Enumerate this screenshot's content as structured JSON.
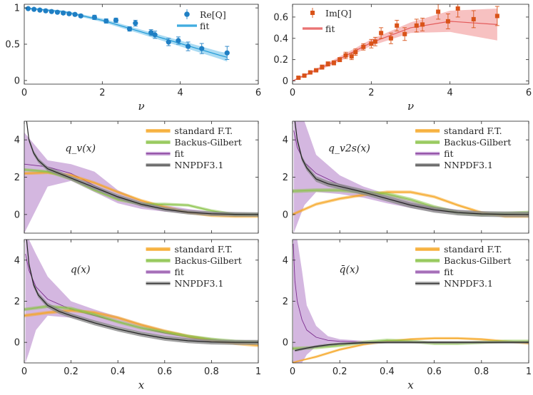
{
  "chart_data": [
    {
      "type": "scatter",
      "id": "re_q",
      "xlabel": "ν",
      "xlim": [
        0,
        6
      ],
      "ylim": [
        -0.05,
        1.05
      ],
      "xticks": [
        0,
        2,
        4,
        6
      ],
      "yticks": [
        0,
        0.5,
        1
      ],
      "ytick_labels": [
        "0",
        "0.5",
        "1"
      ],
      "legend": [
        "Re[Q]",
        "fit"
      ],
      "legend_position": "top-right",
      "points": {
        "x": [
          0.1,
          0.25,
          0.4,
          0.55,
          0.7,
          0.85,
          1.0,
          1.15,
          1.3,
          1.45,
          1.8,
          2.1,
          2.35,
          2.7,
          2.85,
          3.25,
          3.35,
          3.7,
          3.95,
          4.2,
          4.55,
          5.2
        ],
        "y": [
          0.99,
          0.98,
          0.97,
          0.96,
          0.95,
          0.94,
          0.93,
          0.92,
          0.91,
          0.89,
          0.87,
          0.82,
          0.83,
          0.71,
          0.79,
          0.66,
          0.63,
          0.53,
          0.55,
          0.47,
          0.44,
          0.38
        ],
        "err": [
          0.01,
          0.01,
          0.01,
          0.01,
          0.01,
          0.01,
          0.02,
          0.02,
          0.02,
          0.02,
          0.03,
          0.03,
          0.03,
          0.03,
          0.04,
          0.04,
          0.05,
          0.05,
          0.05,
          0.06,
          0.07,
          0.09
        ]
      },
      "fit": {
        "x": [
          0,
          1,
          2,
          3,
          4,
          5,
          5.2
        ],
        "y": [
          1.0,
          0.95,
          0.83,
          0.67,
          0.51,
          0.35,
          0.32
        ],
        "band": [
          0.01,
          0.015,
          0.025,
          0.03,
          0.04,
          0.05,
          0.06
        ]
      }
    },
    {
      "type": "scatter",
      "id": "im_q",
      "xlabel": "ν",
      "xlim": [
        0,
        6
      ],
      "ylim": [
        -0.03,
        0.72
      ],
      "xticks": [
        0,
        2,
        4,
        6
      ],
      "yticks": [
        0,
        0.2,
        0.4,
        0.6
      ],
      "ytick_labels": [
        "0",
        "0.2",
        "0.4",
        "0.6"
      ],
      "legend": [
        "Im[Q]",
        "fit"
      ],
      "legend_position": "top-left",
      "points": {
        "x": [
          0.15,
          0.3,
          0.45,
          0.6,
          0.75,
          0.9,
          1.05,
          1.2,
          1.35,
          1.5,
          1.6,
          1.8,
          2.0,
          2.1,
          2.25,
          2.5,
          2.65,
          2.85,
          3.15,
          3.3,
          3.7,
          3.95,
          4.2,
          4.6,
          5.2
        ],
        "y": [
          0.03,
          0.05,
          0.08,
          0.1,
          0.13,
          0.16,
          0.17,
          0.2,
          0.24,
          0.23,
          0.27,
          0.32,
          0.35,
          0.37,
          0.45,
          0.4,
          0.52,
          0.44,
          0.52,
          0.53,
          0.65,
          0.56,
          0.68,
          0.58,
          0.61
        ]
      },
      "point_err": [
        0.01,
        0.01,
        0.01,
        0.01,
        0.02,
        0.02,
        0.02,
        0.02,
        0.03,
        0.03,
        0.03,
        0.03,
        0.04,
        0.04,
        0.05,
        0.05,
        0.05,
        0.06,
        0.06,
        0.06,
        0.07,
        0.07,
        0.08,
        0.08,
        0.09
      ],
      "fit": {
        "x": [
          0,
          1,
          2,
          3,
          4,
          5.2
        ],
        "y": [
          0.0,
          0.17,
          0.36,
          0.5,
          0.56,
          0.53
        ],
        "band": [
          0.005,
          0.02,
          0.03,
          0.05,
          0.1,
          0.15
        ]
      }
    },
    {
      "type": "line",
      "id": "qv",
      "annotation": "q_v(x)",
      "xlim": [
        0,
        1
      ],
      "ylim": [
        -1,
        5
      ],
      "yticks": [
        0,
        2,
        4
      ],
      "legend": [
        "standard F.T.",
        "Backus-Gilbert",
        "fit",
        "NNPDF3.1"
      ],
      "legend_position": "top-right",
      "series": [
        {
          "name": "standard F.T.",
          "x": [
            0,
            0.1,
            0.2,
            0.3,
            0.4,
            0.5,
            0.6,
            0.7,
            0.8,
            0.9,
            1.0
          ],
          "y": [
            2.2,
            2.25,
            2.1,
            1.7,
            1.2,
            0.75,
            0.4,
            0.1,
            -0.05,
            -0.1,
            -0.1
          ],
          "band": 0.08
        },
        {
          "name": "Backus-Gilbert",
          "x": [
            0,
            0.1,
            0.2,
            0.3,
            0.4,
            0.5,
            0.6,
            0.7,
            0.8,
            0.9,
            1.0
          ],
          "y": [
            2.4,
            2.3,
            1.9,
            1.3,
            0.8,
            0.55,
            0.55,
            0.5,
            0.2,
            0.0,
            0.0
          ],
          "band": 0.08
        },
        {
          "name": "fit",
          "x": [
            0,
            0.1,
            0.2,
            0.3,
            0.4,
            0.5,
            0.6,
            0.7,
            0.8,
            0.9,
            1.0
          ],
          "y": [
            2.7,
            2.55,
            2.2,
            1.55,
            0.9,
            0.5,
            0.3,
            0.15,
            0.05,
            0.0,
            0.0
          ],
          "band_lo": [
            -1.0,
            1.5,
            1.8,
            1.2,
            0.6,
            0.3,
            0.15,
            0.05,
            -0.05,
            -0.05,
            -0.05
          ],
          "band_hi": [
            4.4,
            2.9,
            2.7,
            2.3,
            1.3,
            0.75,
            0.5,
            0.3,
            0.15,
            0.1,
            0.05
          ]
        },
        {
          "name": "NNPDF3.1",
          "x": [
            0.01,
            0.02,
            0.04,
            0.06,
            0.1,
            0.15,
            0.2,
            0.3,
            0.4,
            0.5,
            0.6,
            0.7,
            0.8,
            0.9,
            1.0
          ],
          "y": [
            5.0,
            4.0,
            3.3,
            2.9,
            2.45,
            2.2,
            1.95,
            1.45,
            0.95,
            0.55,
            0.28,
            0.12,
            0.04,
            0.01,
            0.0
          ],
          "band": 0.12
        }
      ]
    },
    {
      "type": "line",
      "id": "qv2s",
      "annotation": "q_v2s(x)",
      "xlim": [
        0,
        1
      ],
      "ylim": [
        -1,
        5
      ],
      "yticks": [
        0,
        2,
        4
      ],
      "legend": [
        "standard F.T.",
        "Backus-Gilbert",
        "fit",
        "NNPDF3.1"
      ],
      "legend_position": "top-right",
      "series": [
        {
          "name": "standard F.T.",
          "x": [
            0,
            0.1,
            0.2,
            0.3,
            0.4,
            0.5,
            0.6,
            0.7,
            0.8,
            0.9,
            1.0
          ],
          "y": [
            0.0,
            0.55,
            0.85,
            1.05,
            1.2,
            1.2,
            0.95,
            0.5,
            0.1,
            -0.1,
            -0.1
          ],
          "band": 0.08
        },
        {
          "name": "Backus-Gilbert",
          "x": [
            0,
            0.1,
            0.2,
            0.3,
            0.4,
            0.5,
            0.6,
            0.7,
            0.8,
            0.9,
            1.0
          ],
          "y": [
            1.25,
            1.3,
            1.3,
            1.2,
            1.1,
            0.8,
            0.4,
            0.1,
            0.0,
            0.05,
            0.1
          ],
          "band": 0.1
        },
        {
          "name": "fit",
          "x": [
            0.005,
            0.02,
            0.05,
            0.1,
            0.2,
            0.3,
            0.4,
            0.5,
            0.6,
            0.7,
            0.8,
            0.9,
            1.0
          ],
          "y": [
            4.5,
            3.6,
            2.8,
            2.2,
            1.6,
            1.2,
            0.85,
            0.55,
            0.3,
            0.15,
            0.05,
            0.0,
            0.0
          ],
          "band_lo": [
            -1.0,
            -0.5,
            0.5,
            1.2,
            1.1,
            0.9,
            0.6,
            0.35,
            0.15,
            0.05,
            -0.05,
            -0.05,
            -0.05
          ],
          "band_hi": [
            5.0,
            5.0,
            5.0,
            3.2,
            2.1,
            1.5,
            1.1,
            0.75,
            0.45,
            0.25,
            0.15,
            0.05,
            0.05
          ]
        },
        {
          "name": "NNPDF3.1",
          "x": [
            0.01,
            0.02,
            0.04,
            0.06,
            0.1,
            0.15,
            0.2,
            0.3,
            0.4,
            0.5,
            0.6,
            0.7,
            0.8,
            0.9,
            1.0
          ],
          "y": [
            5.0,
            4.0,
            3.0,
            2.5,
            1.9,
            1.65,
            1.5,
            1.2,
            0.85,
            0.5,
            0.25,
            0.1,
            0.03,
            0.01,
            0.0
          ],
          "band": 0.15
        }
      ]
    },
    {
      "type": "line",
      "id": "q",
      "annotation": "q(x)",
      "xlabel": "x",
      "xlim": [
        0,
        1
      ],
      "ylim": [
        -1,
        5
      ],
      "xticks": [
        0,
        0.2,
        0.4,
        0.6,
        0.8,
        1
      ],
      "xtick_labels": [
        "0",
        "0.2",
        "0.4",
        "0.6",
        "0.8",
        "1"
      ],
      "yticks": [
        0,
        2,
        4
      ],
      "legend": [
        "standard F.T.",
        "Backus-Gilbert",
        "fit",
        "NNPDF3.1"
      ],
      "legend_position": "top-right",
      "series": [
        {
          "name": "standard F.T.",
          "x": [
            0,
            0.1,
            0.2,
            0.3,
            0.4,
            0.5,
            0.6,
            0.7,
            0.8,
            0.9,
            1.0
          ],
          "y": [
            1.3,
            1.45,
            1.55,
            1.45,
            1.2,
            0.85,
            0.55,
            0.3,
            0.1,
            -0.05,
            -0.15
          ],
          "band": 0.08
        },
        {
          "name": "Backus-Gilbert",
          "x": [
            0,
            0.1,
            0.2,
            0.3,
            0.4,
            0.5,
            0.6,
            0.7,
            0.8,
            0.9,
            1.0
          ],
          "y": [
            1.6,
            1.75,
            1.65,
            1.35,
            1.0,
            0.7,
            0.5,
            0.3,
            0.15,
            0.05,
            0.0
          ],
          "band": 0.08
        },
        {
          "name": "fit",
          "x": [
            0.005,
            0.02,
            0.05,
            0.1,
            0.2,
            0.3,
            0.4,
            0.5,
            0.6,
            0.7,
            0.8,
            0.9,
            1.0
          ],
          "y": [
            4.3,
            3.5,
            2.7,
            2.1,
            1.6,
            1.3,
            1.0,
            0.7,
            0.45,
            0.25,
            0.1,
            0.0,
            0.0
          ],
          "band_lo": [
            -1.0,
            -0.5,
            0.6,
            1.3,
            1.2,
            1.0,
            0.75,
            0.5,
            0.3,
            0.12,
            0.0,
            -0.05,
            -0.05
          ],
          "band_hi": [
            5.0,
            5.0,
            4.3,
            3.2,
            2.0,
            1.6,
            1.25,
            0.9,
            0.6,
            0.35,
            0.2,
            0.05,
            0.05
          ]
        },
        {
          "name": "NNPDF3.1",
          "x": [
            0.01,
            0.02,
            0.04,
            0.06,
            0.1,
            0.15,
            0.2,
            0.3,
            0.4,
            0.5,
            0.6,
            0.7,
            0.8,
            0.9,
            1.0
          ],
          "y": [
            5.0,
            3.8,
            2.8,
            2.3,
            1.8,
            1.5,
            1.3,
            0.95,
            0.65,
            0.4,
            0.2,
            0.08,
            0.02,
            0.0,
            0.0
          ],
          "band": 0.12
        }
      ]
    },
    {
      "type": "line",
      "id": "qbar",
      "annotation": "q̄(x)",
      "xlabel": "x",
      "xlim": [
        0,
        1
      ],
      "ylim": [
        -1,
        5
      ],
      "xticks": [
        0,
        0.2,
        0.4,
        0.6,
        0.8,
        1
      ],
      "xtick_labels": [
        "0",
        "0.2",
        "0.4",
        "0.6",
        "0.8",
        "1"
      ],
      "yticks": [
        0,
        2,
        4
      ],
      "legend": [
        "standard F.T.",
        "Backus-Gilbert",
        "fit",
        "NNPDF3.1"
      ],
      "legend_position": "top-right",
      "series": [
        {
          "name": "standard F.T.",
          "x": [
            0,
            0.1,
            0.2,
            0.3,
            0.4,
            0.5,
            0.6,
            0.7,
            0.8,
            0.9,
            1.0
          ],
          "y": [
            -1.0,
            -0.7,
            -0.35,
            -0.1,
            0.05,
            0.15,
            0.2,
            0.2,
            0.15,
            0.05,
            -0.05
          ],
          "band": 0.06
        },
        {
          "name": "Backus-Gilbert",
          "x": [
            0,
            0.1,
            0.2,
            0.3,
            0.4,
            0.5,
            0.6,
            0.7,
            0.8,
            0.9,
            1.0
          ],
          "y": [
            -0.3,
            -0.25,
            -0.15,
            0.0,
            0.1,
            0.05,
            -0.05,
            -0.05,
            0.0,
            0.05,
            0.05
          ],
          "band": 0.08
        },
        {
          "name": "fit",
          "x": [
            0.003,
            0.01,
            0.02,
            0.04,
            0.06,
            0.1,
            0.15,
            0.2,
            0.3,
            0.5,
            0.7,
            1.0
          ],
          "y": [
            4.8,
            3.0,
            2.0,
            1.1,
            0.6,
            0.25,
            0.1,
            0.05,
            0.02,
            0.0,
            0.0,
            0.0
          ],
          "band_lo": [
            -1.0,
            -1.0,
            -1.0,
            -1.0,
            -0.6,
            -0.2,
            -0.05,
            -0.02,
            -0.01,
            -0.01,
            -0.01,
            -0.01
          ],
          "band_hi": [
            5.0,
            5.0,
            5.0,
            3.5,
            1.8,
            0.8,
            0.3,
            0.15,
            0.08,
            0.05,
            0.04,
            0.03
          ]
        },
        {
          "name": "NNPDF3.1",
          "x": [
            0.01,
            0.03,
            0.06,
            0.1,
            0.15,
            0.2,
            0.3,
            0.4,
            0.5,
            0.7,
            1.0
          ],
          "y": [
            -0.4,
            -0.35,
            -0.28,
            -0.2,
            -0.12,
            -0.07,
            -0.02,
            0.0,
            0.0,
            0.0,
            0.0
          ],
          "band": 0.06
        }
      ]
    }
  ],
  "series_colors": {
    "standard F.T.": "#f5a623",
    "Backus-Gilbert": "#8bc34a",
    "fit": "#7b2d8e",
    "fit_band": "#b07cc6",
    "NNPDF3.1": "#222222",
    "NNPDF3.1_band": "#8a8a8a"
  },
  "top_colors": {
    "re_points": "#1f7fc4",
    "re_fit": "#1f9ad6",
    "re_band": "#7cc8ec",
    "im_points": "#d95319",
    "im_fit": "#e35a5a",
    "im_band": "#f3a0a0"
  }
}
